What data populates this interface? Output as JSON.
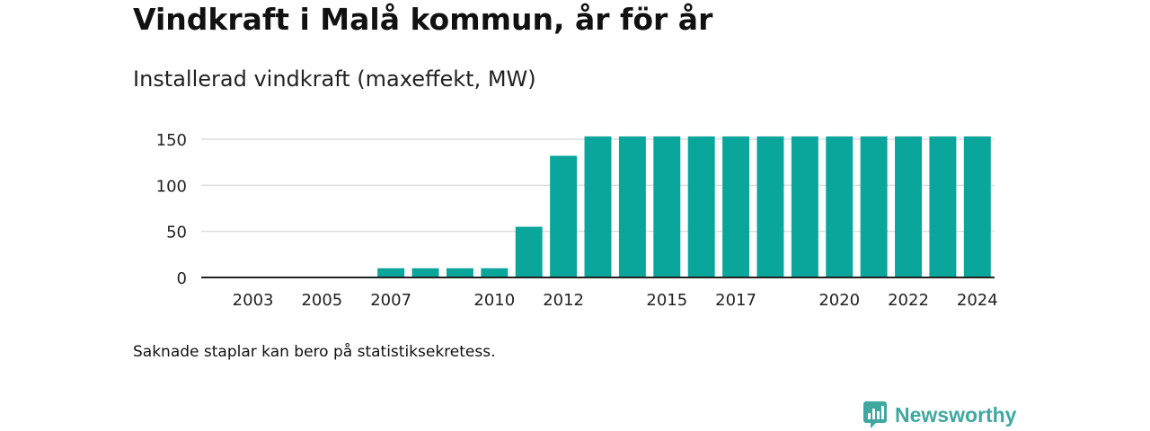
{
  "header": {
    "title": "Vindkraft i Malå kommun, år för år",
    "subtitle": "Installerad vindkraft (maxeffekt, MW)"
  },
  "footer": {
    "note": "Saknade staplar kan bero på statistiksekretess.",
    "brand": "Newsworthy"
  },
  "colors": {
    "bar": "#0aa59b",
    "grid": "#dddddd",
    "axis": "#222222",
    "brand": "#3fa8a0"
  },
  "chart_data": {
    "type": "bar",
    "title": "Vindkraft i Malå kommun, år för år",
    "subtitle": "Installerad vindkraft (maxeffekt, MW)",
    "xlabel": "",
    "ylabel": "",
    "categories": [
      "2002",
      "2003",
      "2004",
      "2005",
      "2006",
      "2007",
      "2008",
      "2009",
      "2010",
      "2011",
      "2012",
      "2013",
      "2014",
      "2015",
      "2016",
      "2017",
      "2018",
      "2019",
      "2020",
      "2021",
      "2022",
      "2023",
      "2024"
    ],
    "values": [
      null,
      null,
      null,
      null,
      null,
      10,
      10,
      10,
      10,
      55,
      132,
      153,
      153,
      153,
      153,
      153,
      153,
      153,
      153,
      153,
      153,
      153,
      153
    ],
    "x_tick_labels": [
      "2003",
      "2005",
      "2007",
      "2010",
      "2012",
      "2015",
      "2017",
      "2020",
      "2022",
      "2024"
    ],
    "y_ticks": [
      0,
      50,
      100,
      150
    ],
    "ylim": [
      0,
      160
    ],
    "grid": true,
    "legend": "none"
  }
}
